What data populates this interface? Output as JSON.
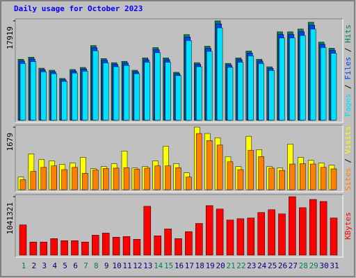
{
  "chart_data": {
    "type": "bar",
    "title": "Daily usage for October 2023",
    "categories": [
      "1",
      "2",
      "3",
      "4",
      "5",
      "6",
      "7",
      "8",
      "9",
      "10",
      "11",
      "12",
      "13",
      "14",
      "15",
      "16",
      "17",
      "18",
      "19",
      "20",
      "21",
      "22",
      "23",
      "24",
      "25",
      "26",
      "27",
      "28",
      "29",
      "30",
      "31"
    ],
    "category_colors": [
      "#00805c",
      "#000080",
      "#000080",
      "#000080",
      "#000080",
      "#000080",
      "#00805c",
      "#00805c",
      "#000080",
      "#000080",
      "#000080",
      "#000080",
      "#000080",
      "#00805c",
      "#00805c",
      "#000080",
      "#000080",
      "#000080",
      "#000080",
      "#000080",
      "#00805c",
      "#00805c",
      "#000080",
      "#000080",
      "#000080",
      "#000080",
      "#000080",
      "#00805c",
      "#00805c",
      "#000080",
      "#000080"
    ],
    "legend_separator": " / ",
    "panels": [
      {
        "ylim": [
          0,
          17919
        ],
        "yticks": [
          17919
        ],
        "series": [
          {
            "name": "Hits",
            "color": "#00805c",
            "values": [
              11000,
              11370,
              9390,
              9020,
              7540,
              9150,
              9520,
              13470,
              11120,
              10380,
              10630,
              9020,
              11250,
              13100,
              11250,
              8650,
              15450,
              10380,
              13350,
              17919,
              10260,
              11250,
              12480,
              11000,
              9640,
              15940,
              15940,
              16440,
              17670,
              14090,
              12980
            ]
          },
          {
            "name": "Files",
            "color": "#0040ff",
            "values": [
              10670,
              11030,
              9110,
              8750,
              7310,
              8880,
              9230,
              13070,
              10790,
              10070,
              10310,
              8750,
              10910,
              12710,
              10910,
              8390,
              14990,
              10070,
              12950,
              17380,
              9950,
              10910,
              12110,
              10670,
              9350,
              15460,
              15460,
              15950,
              17140,
              13670,
              12590
            ]
          },
          {
            "name": "Pages",
            "color": "#00e0ff",
            "values": [
              10230,
              10570,
              8730,
              8390,
              7010,
              8510,
              8850,
              12530,
              10340,
              9650,
              9890,
              8390,
              10460,
              12180,
              10460,
              8040,
              14370,
              9650,
              12420,
              16660,
              9540,
              10460,
              11610,
              10230,
              8970,
              14820,
              14820,
              15290,
              16430,
              13100,
              12070
            ]
          }
        ]
      },
      {
        "ylim": [
          0,
          1679
        ],
        "yticks": [
          1679
        ],
        "series": [
          {
            "name": "Visits",
            "color": "#ffff00",
            "values": [
              340,
              962,
              811,
              774,
              679,
              717,
              868,
              566,
              623,
              698,
              1038,
              585,
              623,
              774,
              1170,
              698,
              453,
              1679,
              1510,
              1396,
              887,
              623,
              1434,
              1076,
              623,
              585,
              1227,
              868,
              793,
              717,
              660
            ]
          },
          {
            "name": "Sites",
            "color": "#ff8000",
            "values": [
              270,
              490,
              600,
              640,
              540,
              600,
              440,
              530,
              570,
              580,
              590,
              550,
              580,
              640,
              640,
              590,
              340,
              1510,
              1320,
              1200,
              750,
              540,
              1060,
              890,
              580,
              520,
              690,
              700,
              690,
              600,
              560
            ]
          }
        ]
      },
      {
        "ylim": [
          0,
          1041321
        ],
        "yticks": [
          1041321
        ],
        "series": [
          {
            "name": "KBytes",
            "color": "#ff0000",
            "values": [
              539000,
              233000,
              233000,
              294000,
              257000,
              257000,
              233000,
              355000,
              392000,
              319000,
              331000,
              282000,
              870000,
              343000,
              466000,
              294000,
              417000,
              564000,
              882000,
              821000,
              625000,
              649000,
              662000,
              760000,
              809000,
              735000,
              1041321,
              845000,
              992000,
              956000,
              662000
            ]
          }
        ]
      }
    ]
  }
}
